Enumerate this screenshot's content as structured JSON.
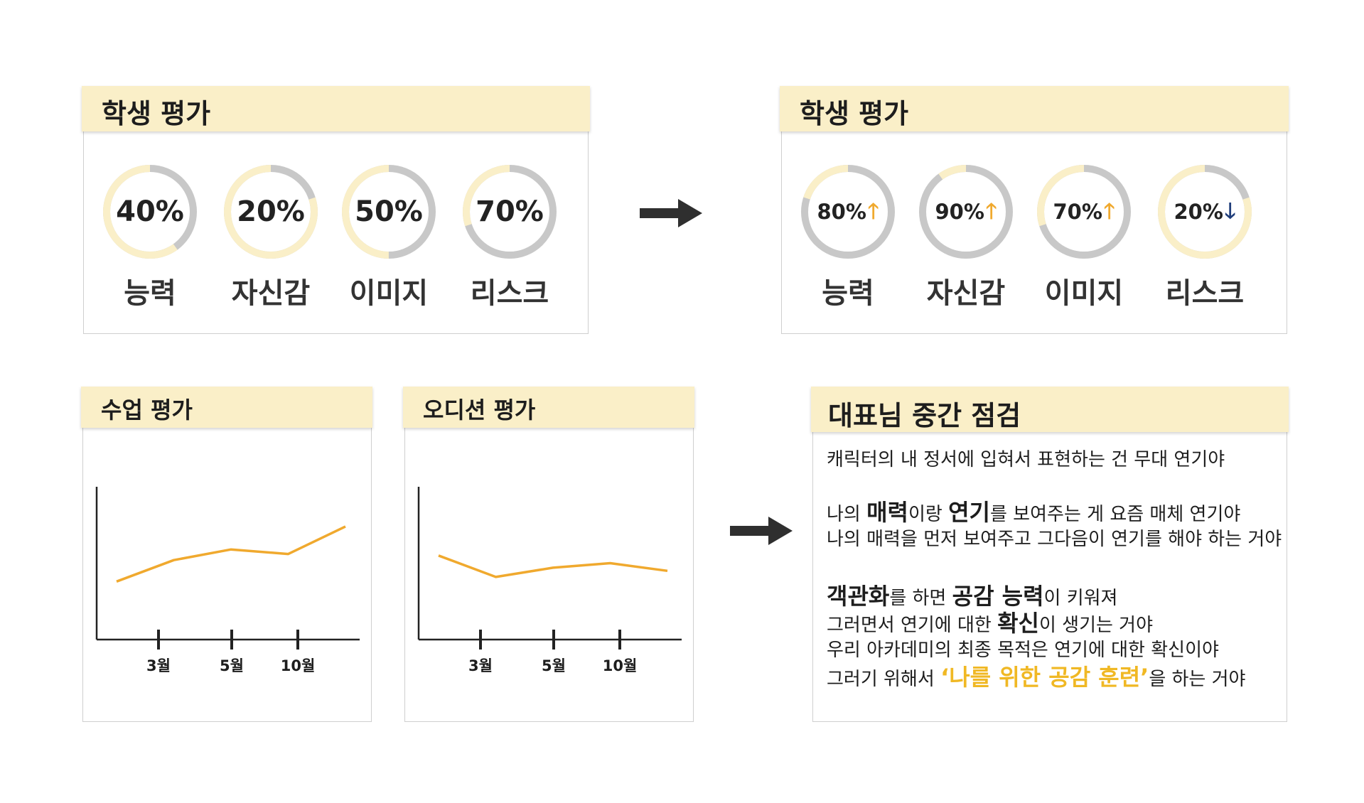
{
  "colors": {
    "header_bg": "#faefc8",
    "gauge_track": "#c8c8c8",
    "gauge_fill": "#faefc8",
    "line": "#f0a92e",
    "arrow_up": "#f0a92e",
    "arrow_down": "#1f3d7a",
    "highlight": "#f0b824"
  },
  "before": {
    "title": "학생 평가",
    "items": [
      {
        "label": "능력",
        "pct_text": "40%",
        "value": 40
      },
      {
        "label": "자신감",
        "pct_text": "20%",
        "value": 20
      },
      {
        "label": "이미지",
        "pct_text": "50%",
        "value": 50
      },
      {
        "label": "리스크",
        "pct_text": "70%",
        "value": 70
      }
    ]
  },
  "after": {
    "title": "학생 평가",
    "items": [
      {
        "label": "능력",
        "pct_text": "80%",
        "value": 80,
        "trend": "up",
        "arrow": "🡑"
      },
      {
        "label": "자신감",
        "pct_text": "90%",
        "value": 90,
        "trend": "up",
        "arrow": "🡑"
      },
      {
        "label": "이미지",
        "pct_text": "70%",
        "value": 70,
        "trend": "up",
        "arrow": "🡑"
      },
      {
        "label": "리스크",
        "pct_text": "20%",
        "value": 20,
        "trend": "down",
        "arrow": "🡓"
      }
    ]
  },
  "chart_data": [
    {
      "type": "line",
      "title": "수업 평가",
      "x_ticks": [
        "3월",
        "5월",
        "10월"
      ],
      "values": [
        0.38,
        0.52,
        0.59,
        0.56,
        0.74
      ],
      "ylim": [
        0,
        1
      ]
    },
    {
      "type": "line",
      "title": "오디션 평가",
      "x_ticks": [
        "3월",
        "5월",
        "10월"
      ],
      "values": [
        0.55,
        0.41,
        0.47,
        0.5,
        0.45
      ],
      "ylim": [
        0,
        1
      ]
    }
  ],
  "review": {
    "title": "대표님 중간 점검",
    "line1": "캐릭터의 내 정서에 입혀서 표현하는 건 무대 연기야",
    "line2": {
      "a": "나의 ",
      "b": "매력",
      "c": "이랑 ",
      "d": "연기",
      "e": "를 보여주는 게 요즘 매체 연기야"
    },
    "line3": "나의 매력을 먼저 보여주고 그다음이 연기를 해야 하는 거야",
    "line4": {
      "a": "객관화",
      "b": "를 하면 ",
      "c": "공감 능력",
      "d": "이 키워져"
    },
    "line5": {
      "a": "그러면서 연기에 대한 ",
      "b": "확신",
      "c": "이 생기는 거야"
    },
    "line6": "우리 아카데미의 최종 목적은 연기에 대한 확신이야",
    "line7": {
      "a": "그러기 위해서 ",
      "b": "‘나를 위한 공감 훈련’",
      "c": "을 하는 거야"
    }
  }
}
